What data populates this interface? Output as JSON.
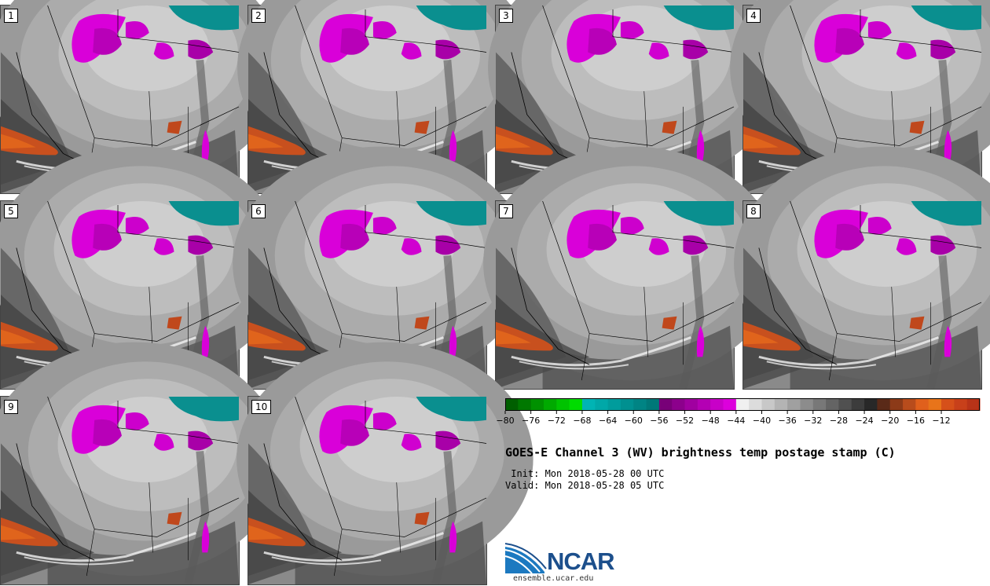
{
  "panels": [
    {
      "label": "1"
    },
    {
      "label": "2"
    },
    {
      "label": "3"
    },
    {
      "label": "4"
    },
    {
      "label": "5"
    },
    {
      "label": "6"
    },
    {
      "label": "7"
    },
    {
      "label": "8"
    },
    {
      "label": "9"
    },
    {
      "label": "10"
    }
  ],
  "colorbar": {
    "colors": [
      "#005f00",
      "#007800",
      "#009100",
      "#00aa00",
      "#00c300",
      "#00dc00",
      "#00b4b4",
      "#00a8a8",
      "#009c9c",
      "#009090",
      "#008484",
      "#007878",
      "#780078",
      "#8c008c",
      "#a000a0",
      "#b400b4",
      "#c800c8",
      "#dc00dc",
      "#f0f0f0",
      "#dcdcdc",
      "#c8c8c8",
      "#b4b4b4",
      "#a0a0a0",
      "#8c8c8c",
      "#787878",
      "#646464",
      "#505050",
      "#3c3c3c",
      "#282828",
      "#5a2a18",
      "#8c3a18",
      "#b84c1c",
      "#e0601c",
      "#e8741a",
      "#d6501a",
      "#c8401a",
      "#b83318"
    ],
    "tick_labels": [
      "−80",
      "−76",
      "−72",
      "−68",
      "−64",
      "−60",
      "−56",
      "−52",
      "−48",
      "−44",
      "−40",
      "−36",
      "−32",
      "−28",
      "−24",
      "−20",
      "−16",
      "−12"
    ]
  },
  "title": "GOES-E Channel 3 (WV) brightness temp postage stamp (C)",
  "init": " Init: Mon 2018-05-28 00 UTC",
  "valid": "Valid: Mon 2018-05-28 05 UTC",
  "logo": {
    "name": "NCAR",
    "url": "ensemble.ucar.edu"
  }
}
